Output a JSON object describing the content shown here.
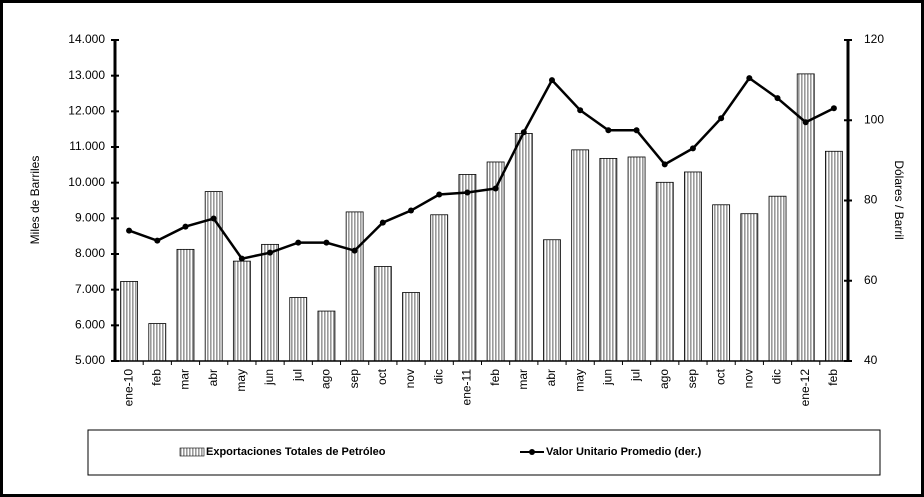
{
  "chart_data": {
    "type": "bar_line",
    "y_label": "Miles de Barriles",
    "y2_label": "Dólares / Barril",
    "categories": [
      "ene-10",
      "feb",
      "mar",
      "abr",
      "may",
      "jun",
      "jul",
      "ago",
      "sep",
      "oct",
      "nov",
      "dic",
      "ene-11",
      "feb",
      "mar",
      "abr",
      "may",
      "jun",
      "jul",
      "ago",
      "sep",
      "oct",
      "nov",
      "dic",
      "ene-12",
      "feb"
    ],
    "series": [
      {
        "name": "Exportaciones Totales de Petróleo",
        "type": "bar",
        "color": "#bdbdbd",
        "values": [
          7230,
          6050,
          8130,
          9750,
          7800,
          8270,
          6780,
          6400,
          9180,
          7650,
          6920,
          9100,
          10230,
          10580,
          11380,
          8400,
          10920,
          10680,
          10720,
          10010,
          10300,
          9380,
          9130,
          9620,
          13050,
          10880
        ]
      },
      {
        "name": "Valor Unitario Promedio  (der.)",
        "type": "line",
        "axis": "y2",
        "color": "#000000",
        "values": [
          72.5,
          70,
          73.5,
          75.5,
          65.5,
          67,
          69.5,
          69.5,
          67.5,
          74.5,
          77.5,
          81.5,
          82,
          83,
          97,
          110,
          102.5,
          97.5,
          97.5,
          89,
          93,
          100.5,
          110.5,
          105.5,
          99.5,
          103
        ]
      }
    ],
    "ylim": [
      5000,
      14000
    ],
    "yticks": [
      {
        "value": 5000,
        "label": "5.000"
      },
      {
        "value": 6000,
        "label": "6.000"
      },
      {
        "value": 7000,
        "label": "7.000"
      },
      {
        "value": 8000,
        "label": "8.000"
      },
      {
        "value": 9000,
        "label": "9.000"
      },
      {
        "value": 10000,
        "label": "10.000"
      },
      {
        "value": 11000,
        "label": "11.000"
      },
      {
        "value": 12000,
        "label": "12.000"
      },
      {
        "value": 13000,
        "label": "13.000"
      },
      {
        "value": 14000,
        "label": "14.000"
      }
    ],
    "y2lim": [
      40,
      120
    ],
    "y2ticks": [
      40,
      60,
      80,
      100,
      120
    ]
  }
}
